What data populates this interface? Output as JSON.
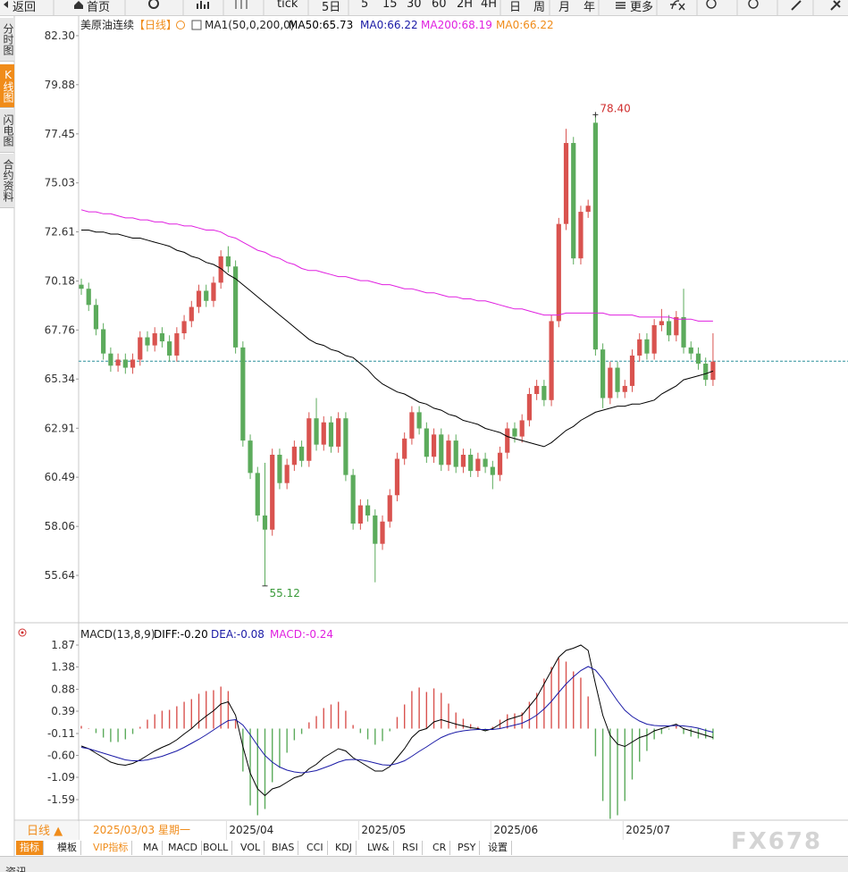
{
  "toolbar": [
    "返回",
    "首页",
    "tick",
    "5日",
    "5",
    "15",
    "30",
    "60",
    "2H",
    "4H",
    "日",
    "周",
    "月",
    "年",
    "更多"
  ],
  "sidebar": [
    "分时图",
    "K线图",
    "闪电图",
    "合约资料"
  ],
  "chart_data": [
    {
      "type": "candlestick",
      "title": "美原油连续",
      "period": "【日线】",
      "indicator": "MA1(50,0,200,0)",
      "categories": [
        null,
        null,
        null,
        null,
        null,
        null,
        null,
        null,
        null,
        null,
        null,
        null,
        null,
        null,
        null,
        null,
        null,
        null,
        null,
        null,
        "2025/04",
        null,
        null,
        null,
        null,
        null,
        null,
        null,
        null,
        null,
        null,
        null,
        null,
        null,
        null,
        null,
        null,
        null,
        "2025/05",
        null,
        null,
        null,
        null,
        null,
        null,
        null,
        null,
        null,
        null,
        null,
        null,
        null,
        null,
        null,
        null,
        null,
        "2025/06",
        null,
        null,
        null,
        null,
        null,
        null,
        null,
        null,
        null,
        null,
        null,
        null,
        null,
        null,
        null,
        null,
        null,
        "2025/07",
        null,
        null,
        null,
        null,
        null,
        null,
        null,
        null,
        null,
        null,
        null,
        null
      ],
      "open": [
        70.0,
        69.8,
        69.0,
        67.8,
        66.6,
        66.0,
        66.3,
        65.9,
        66.3,
        67.4,
        67.0,
        67.6,
        67.2,
        66.5,
        67.6,
        68.2,
        68.9,
        69.7,
        69.2,
        70.1,
        71.4,
        70.9,
        66.9,
        62.3,
        60.7,
        58.6,
        57.9,
        61.6,
        60.2,
        61.1,
        62.0,
        61.3,
        63.4,
        62.1,
        63.2,
        62.0,
        63.4,
        60.6,
        58.2,
        59.1,
        58.6,
        57.2,
        58.3,
        59.6,
        61.4,
        62.4,
        63.7,
        62.9,
        61.5,
        62.6,
        61.1,
        62.3,
        61.0,
        61.6,
        60.8,
        61.4,
        61.0,
        60.6,
        61.7,
        62.9,
        62.5,
        63.3,
        64.6,
        65.0,
        64.3,
        68.2,
        73.0,
        77.0,
        71.3,
        73.6,
        78.0,
        66.8,
        64.4,
        65.9,
        64.7,
        65.0,
        66.5,
        67.3,
        66.6,
        68.0,
        68.2,
        67.5,
        68.4,
        66.9,
        66.6,
        66.1,
        65.3
      ],
      "high": [
        70.3,
        70.1,
        69.3,
        68.1,
        66.9,
        66.6,
        66.6,
        66.6,
        67.7,
        67.7,
        67.9,
        67.9,
        67.5,
        67.9,
        68.5,
        69.2,
        70.0,
        70.0,
        70.4,
        71.7,
        71.9,
        71.2,
        67.2,
        62.6,
        61.0,
        61.2,
        61.9,
        61.9,
        61.4,
        62.3,
        62.3,
        63.7,
        64.4,
        63.5,
        63.5,
        63.7,
        63.7,
        60.9,
        59.4,
        59.4,
        58.9,
        58.6,
        59.9,
        61.7,
        62.7,
        64.0,
        64.0,
        63.2,
        62.9,
        62.9,
        62.6,
        62.6,
        61.9,
        61.9,
        61.7,
        61.7,
        61.3,
        62.0,
        63.2,
        63.2,
        63.6,
        64.9,
        65.3,
        65.3,
        68.5,
        73.3,
        77.7,
        77.3,
        73.9,
        74.2,
        78.4,
        67.1,
        66.2,
        66.2,
        65.3,
        66.8,
        67.6,
        67.6,
        68.3,
        68.8,
        68.5,
        68.7,
        69.8,
        67.2,
        66.9,
        66.4,
        67.6
      ],
      "low": [
        69.5,
        68.7,
        67.5,
        66.3,
        65.7,
        65.7,
        65.6,
        65.6,
        66.0,
        66.7,
        66.7,
        66.9,
        66.2,
        66.2,
        67.3,
        67.9,
        68.6,
        68.9,
        68.9,
        69.8,
        70.6,
        66.6,
        62.0,
        60.4,
        58.3,
        55.12,
        57.6,
        59.9,
        59.9,
        60.8,
        61.0,
        61.0,
        61.8,
        61.8,
        61.7,
        61.7,
        60.3,
        57.9,
        57.9,
        58.3,
        55.3,
        56.9,
        58.0,
        59.3,
        61.1,
        62.1,
        62.6,
        61.2,
        61.2,
        60.8,
        60.8,
        60.7,
        60.7,
        60.5,
        60.5,
        60.7,
        59.9,
        60.3,
        61.4,
        62.2,
        62.2,
        63.0,
        64.3,
        64.0,
        64.0,
        67.9,
        72.7,
        71.0,
        71.0,
        73.3,
        66.5,
        63.9,
        64.1,
        64.4,
        64.4,
        64.7,
        66.2,
        66.3,
        66.3,
        67.7,
        67.2,
        67.2,
        66.6,
        66.3,
        65.8,
        65.0,
        65.0
      ],
      "close": [
        69.8,
        69.0,
        67.8,
        66.6,
        66.0,
        66.3,
        65.9,
        66.3,
        67.4,
        67.0,
        67.6,
        67.2,
        66.5,
        67.6,
        68.2,
        68.9,
        69.7,
        69.2,
        70.1,
        71.4,
        70.9,
        66.9,
        62.3,
        60.7,
        58.6,
        57.9,
        61.6,
        60.2,
        61.1,
        62.0,
        61.3,
        63.4,
        62.1,
        63.2,
        62.0,
        63.4,
        60.6,
        58.2,
        59.1,
        58.6,
        57.2,
        58.3,
        59.6,
        61.4,
        62.4,
        63.7,
        62.9,
        61.5,
        62.6,
        61.1,
        62.3,
        61.0,
        61.6,
        60.8,
        61.4,
        61.0,
        60.6,
        61.7,
        62.9,
        62.5,
        63.3,
        64.6,
        65.0,
        64.3,
        68.2,
        73.0,
        77.0,
        71.3,
        73.6,
        73.9,
        66.8,
        64.4,
        65.9,
        64.7,
        65.0,
        66.5,
        67.3,
        66.6,
        68.0,
        68.2,
        67.5,
        68.4,
        66.9,
        66.6,
        66.1,
        65.3,
        66.2
      ],
      "up_color": "#d9534f",
      "down_color": "#5cab5c",
      "series": [
        {
          "name": "MA50:65.73",
          "color": "#000000",
          "values": [
            72.7,
            72.7,
            72.6,
            72.6,
            72.5,
            72.5,
            72.4,
            72.3,
            72.3,
            72.2,
            72.1,
            72.0,
            71.9,
            71.7,
            71.6,
            71.4,
            71.3,
            71.1,
            71.0,
            70.8,
            70.5,
            70.3,
            70.0,
            69.7,
            69.4,
            69.1,
            68.8,
            68.5,
            68.2,
            67.9,
            67.6,
            67.3,
            67.1,
            67.0,
            66.8,
            66.7,
            66.5,
            66.4,
            66.1,
            65.8,
            65.4,
            65.1,
            64.9,
            64.7,
            64.6,
            64.4,
            64.2,
            64.1,
            63.9,
            63.8,
            63.6,
            63.5,
            63.3,
            63.2,
            63.1,
            62.9,
            62.8,
            62.7,
            62.5,
            62.4,
            62.3,
            62.2,
            62.1,
            62.0,
            62.2,
            62.5,
            62.8,
            63.0,
            63.3,
            63.5,
            63.7,
            63.8,
            63.9,
            64.0,
            64.0,
            64.1,
            64.1,
            64.2,
            64.3,
            64.6,
            64.8,
            65.0,
            65.3,
            65.4,
            65.5,
            65.6,
            65.73
          ]
        },
        {
          "name": "MA200:68.19",
          "color": "#e020e0",
          "values": [
            73.7,
            73.6,
            73.6,
            73.5,
            73.5,
            73.4,
            73.3,
            73.3,
            73.2,
            73.2,
            73.1,
            73.1,
            73.0,
            73.0,
            72.9,
            72.9,
            72.8,
            72.7,
            72.7,
            72.6,
            72.4,
            72.3,
            72.1,
            71.9,
            71.7,
            71.6,
            71.4,
            71.3,
            71.1,
            71.0,
            70.8,
            70.7,
            70.7,
            70.6,
            70.5,
            70.4,
            70.4,
            70.3,
            70.2,
            70.2,
            70.1,
            70.0,
            70.0,
            69.9,
            69.8,
            69.8,
            69.7,
            69.6,
            69.6,
            69.5,
            69.4,
            69.4,
            69.3,
            69.3,
            69.2,
            69.2,
            69.1,
            69.0,
            68.9,
            68.8,
            68.8,
            68.7,
            68.6,
            68.5,
            68.5,
            68.5,
            68.6,
            68.6,
            68.6,
            68.6,
            68.6,
            68.6,
            68.5,
            68.5,
            68.5,
            68.5,
            68.4,
            68.4,
            68.4,
            68.4,
            68.4,
            68.3,
            68.3,
            68.3,
            68.2,
            68.2,
            68.2
          ]
        }
      ],
      "legend_extra": [
        {
          "name": "MA0:66.22",
          "color": "#1a1aa6"
        },
        {
          "name": "MA0:66.22",
          "color": "#f08c1a"
        }
      ],
      "last_price": 66.22,
      "last_price_color": "#2a8f9a",
      "max_label": {
        "value": 78.4,
        "label": "78.40",
        "color": "#d03030"
      },
      "min_label": {
        "value": 55.12,
        "label": "55.12",
        "color": "#3a9a3a"
      },
      "ylim": [
        53.39,
        82.96
      ],
      "yticks": [
        {
          "value": 82.3,
          "label": "82.30"
        },
        79.88,
        77.45,
        75.03,
        72.61,
        70.18,
        67.76,
        65.34,
        62.91,
        60.49,
        58.06,
        55.64
      ]
    },
    {
      "type": "macd",
      "title": "MACD(13,8,9)",
      "series": [
        {
          "name": "DIFF:-0.20",
          "color": "#000000",
          "values": [
            -0.39,
            -0.45,
            -0.55,
            -0.65,
            -0.75,
            -0.8,
            -0.82,
            -0.78,
            -0.7,
            -0.6,
            -0.5,
            -0.42,
            -0.35,
            -0.25,
            -0.12,
            0.0,
            0.15,
            0.28,
            0.4,
            0.55,
            0.6,
            0.3,
            -0.4,
            -1.0,
            -1.35,
            -1.5,
            -1.35,
            -1.3,
            -1.2,
            -1.1,
            -1.05,
            -0.9,
            -0.8,
            -0.65,
            -0.55,
            -0.45,
            -0.5,
            -0.65,
            -0.75,
            -0.85,
            -0.95,
            -0.95,
            -0.85,
            -0.65,
            -0.45,
            -0.2,
            -0.05,
            0.0,
            0.15,
            0.2,
            0.15,
            0.1,
            0.06,
            0.02,
            0.0,
            -0.05,
            0.0,
            0.1,
            0.2,
            0.25,
            0.3,
            0.5,
            0.7,
            1.0,
            1.3,
            1.6,
            1.75,
            1.8,
            1.87,
            1.75,
            1.0,
            0.3,
            -0.15,
            -0.35,
            -0.4,
            -0.3,
            -0.2,
            -0.15,
            -0.05,
            0.0,
            0.05,
            0.1,
            0.0,
            -0.05,
            -0.1,
            -0.15,
            -0.2
          ]
        },
        {
          "name": "DEA:-0.08",
          "color": "#1a1aa6",
          "values": [
            -0.42,
            -0.45,
            -0.5,
            -0.55,
            -0.6,
            -0.65,
            -0.7,
            -0.72,
            -0.72,
            -0.7,
            -0.66,
            -0.62,
            -0.56,
            -0.5,
            -0.42,
            -0.33,
            -0.24,
            -0.14,
            -0.03,
            0.08,
            0.18,
            0.2,
            0.08,
            -0.14,
            -0.38,
            -0.6,
            -0.75,
            -0.86,
            -0.93,
            -0.97,
            -0.99,
            -0.97,
            -0.94,
            -0.88,
            -0.82,
            -0.75,
            -0.7,
            -0.69,
            -0.7,
            -0.73,
            -0.77,
            -0.81,
            -0.82,
            -0.78,
            -0.72,
            -0.62,
            -0.51,
            -0.41,
            -0.3,
            -0.2,
            -0.13,
            -0.08,
            -0.05,
            -0.03,
            -0.02,
            -0.02,
            -0.02,
            0.0,
            0.04,
            0.08,
            0.12,
            0.2,
            0.3,
            0.44,
            0.61,
            0.81,
            1.0,
            1.16,
            1.3,
            1.39,
            1.31,
            1.11,
            0.86,
            0.62,
            0.41,
            0.27,
            0.17,
            0.1,
            0.07,
            0.06,
            0.06,
            0.07,
            0.06,
            0.04,
            0.01,
            -0.04,
            -0.08
          ]
        }
      ],
      "histogram": {
        "name": "MACD:-0.24",
        "color": "#e020e0",
        "up_color": "#d9534f",
        "down_color": "#5cab5c",
        "values": [
          0.06,
          0.0,
          -0.1,
          -0.2,
          -0.3,
          -0.3,
          -0.24,
          -0.12,
          0.04,
          0.2,
          0.32,
          0.4,
          0.42,
          0.5,
          0.6,
          0.66,
          0.78,
          0.84,
          0.86,
          0.94,
          0.84,
          0.2,
          -0.96,
          -1.72,
          -1.94,
          -1.8,
          -1.2,
          -0.88,
          -0.54,
          -0.26,
          -0.12,
          0.14,
          0.28,
          0.46,
          0.54,
          0.6,
          0.4,
          0.08,
          -0.1,
          -0.24,
          -0.36,
          -0.28,
          -0.06,
          0.26,
          0.54,
          0.84,
          0.92,
          0.82,
          0.9,
          0.8,
          0.56,
          0.36,
          0.22,
          0.1,
          0.04,
          -0.06,
          0.04,
          0.2,
          0.32,
          0.34,
          0.36,
          0.6,
          0.8,
          1.12,
          1.38,
          1.58,
          1.5,
          1.28,
          1.14,
          0.72,
          -0.62,
          -1.62,
          -2.02,
          -1.94,
          -1.62,
          -1.14,
          -0.74,
          -0.5,
          -0.24,
          -0.12,
          -0.02,
          0.06,
          -0.12,
          -0.18,
          -0.22,
          -0.22,
          -0.24
        ]
      },
      "ylim": [
        -2.05,
        2.01
      ],
      "yticks": [
        1.87,
        1.38,
        0.88,
        0.39,
        -0.11,
        {
          "value": -0.6,
          "label": "-0.60"
        },
        -1.09,
        -1.59
      ]
    }
  ],
  "footer": {
    "period_button": "日线 ▲",
    "cursor_date": "2025/03/03 星期一",
    "tabs": [
      "指标",
      "模板",
      "VIP指标",
      "MA",
      "MACD",
      "BOLL",
      "VOL",
      "BIAS",
      "CCI",
      "KDJ",
      "LW&",
      "RSI",
      "CR",
      "PSY",
      "设置"
    ],
    "news": "资讯"
  },
  "watermark": "FX678"
}
